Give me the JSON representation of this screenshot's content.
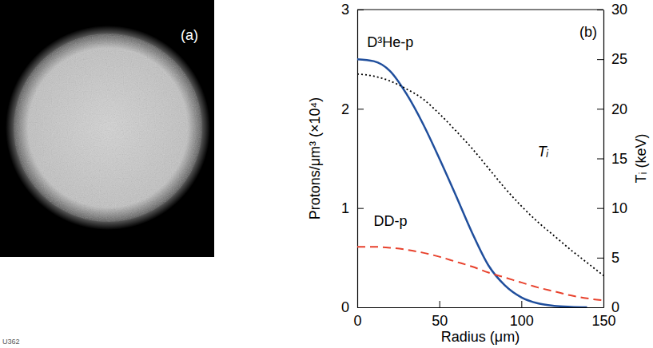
{
  "chart_data": [
    {
      "type": "image",
      "annotations": [
        "(a)",
        "U362"
      ]
    },
    {
      "type": "line",
      "annotations": [
        "(b)"
      ],
      "x_label": "Radius (μm)",
      "y_label": "Protons/μm³ (×10⁴)",
      "y2_label": "Tᵢ (keV)",
      "x": [
        0,
        10,
        20,
        30,
        40,
        50,
        60,
        70,
        80,
        90,
        100,
        110,
        120,
        130,
        140,
        150
      ],
      "xlim": [
        0,
        150
      ],
      "xticks": [
        0,
        50,
        100,
        150
      ],
      "ylim": [
        0,
        3
      ],
      "yticks": [
        0,
        1,
        2,
        3
      ],
      "y2lim": [
        0,
        30
      ],
      "y2ticks": [
        0,
        5,
        10,
        15,
        20,
        25,
        30
      ],
      "series": [
        {
          "name": "D³He-p",
          "color": "#1f4e9c",
          "line_style": "solid",
          "values": [
            2.5,
            2.48,
            2.38,
            2.15,
            1.85,
            1.5,
            1.13,
            0.75,
            0.42,
            0.22,
            0.1,
            0.04,
            0.015,
            0.005,
            0,
            null
          ]
        },
        {
          "name": "DD-p",
          "color": "#e8412c",
          "line_style": "dashed",
          "values": [
            0.61,
            0.61,
            0.6,
            0.58,
            0.55,
            0.51,
            0.46,
            0.41,
            0.35,
            0.3,
            0.25,
            0.2,
            0.16,
            0.12,
            0.09,
            0.07
          ]
        },
        {
          "name": "Tᵢ",
          "color": "#000000",
          "line_style": "dotted",
          "axis": "y2",
          "values": [
            23.5,
            23.3,
            22.8,
            22,
            21,
            19.5,
            17.8,
            16,
            14,
            12,
            10.2,
            8.6,
            7.2,
            5.8,
            4.5,
            3.2
          ]
        }
      ]
    }
  ]
}
